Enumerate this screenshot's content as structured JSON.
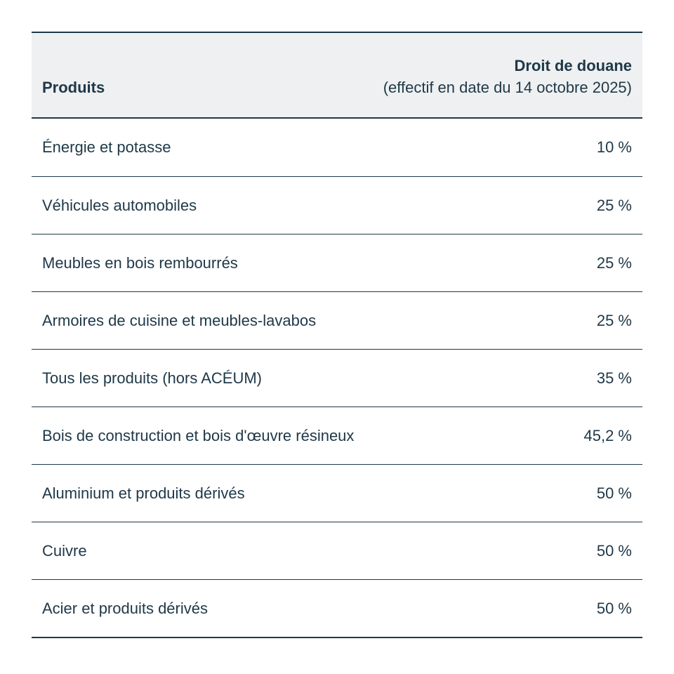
{
  "table": {
    "header": {
      "products_label": "Produits",
      "tariff_label_line1": "Droit de douane",
      "tariff_label_line2": "(effectif en date du 14 octobre 2025)"
    },
    "rows": [
      {
        "product": "Énergie et potasse",
        "tariff": "10 %"
      },
      {
        "product": "Véhicules automobiles",
        "tariff": "25 %"
      },
      {
        "product": "Meubles en bois rembourrés",
        "tariff": "25 %"
      },
      {
        "product": "Armoires de cuisine et meubles-lavabos",
        "tariff": "25 %"
      },
      {
        "product": "Tous les produits (hors ACÉUM)",
        "tariff": "35 %"
      },
      {
        "product": "Bois de construction et bois d'œuvre résineux",
        "tariff": "45,2 %"
      },
      {
        "product": "Aluminium et produits dérivés",
        "tariff": "50 %"
      },
      {
        "product": "Cuivre",
        "tariff": "50 %"
      },
      {
        "product": "Acier et produits dérivés",
        "tariff": "50 %"
      }
    ]
  },
  "colors": {
    "text": "#1e3848",
    "rule": "#1e3848",
    "header_background": "#eff0f1",
    "page_background": "#ffffff"
  },
  "chart_data": {
    "type": "table",
    "title": "",
    "columns": [
      "Produits",
      "Droit de douane (effectif en date du 14 octobre 2025)"
    ],
    "rows": [
      [
        "Énergie et potasse",
        "10 %"
      ],
      [
        "Véhicules automobiles",
        "25 %"
      ],
      [
        "Meubles en bois rembourrés",
        "25 %"
      ],
      [
        "Armoires de cuisine et meubles-lavabos",
        "25 %"
      ],
      [
        "Tous les produits (hors ACÉUM)",
        "35 %"
      ],
      [
        "Bois de construction et bois d'œuvre résineux",
        "45,2 %"
      ],
      [
        "Aluminium et produits dérivés",
        "50 %"
      ],
      [
        "Cuivre",
        "50 %"
      ],
      [
        "Acier et produits dérivés",
        "50 %"
      ]
    ],
    "tariff_values_percent": [
      10,
      25,
      25,
      25,
      35,
      45.2,
      50,
      50,
      50
    ],
    "layout_hints": {
      "value_alignment": "right",
      "header_band": true,
      "row_separators": true
    }
  }
}
